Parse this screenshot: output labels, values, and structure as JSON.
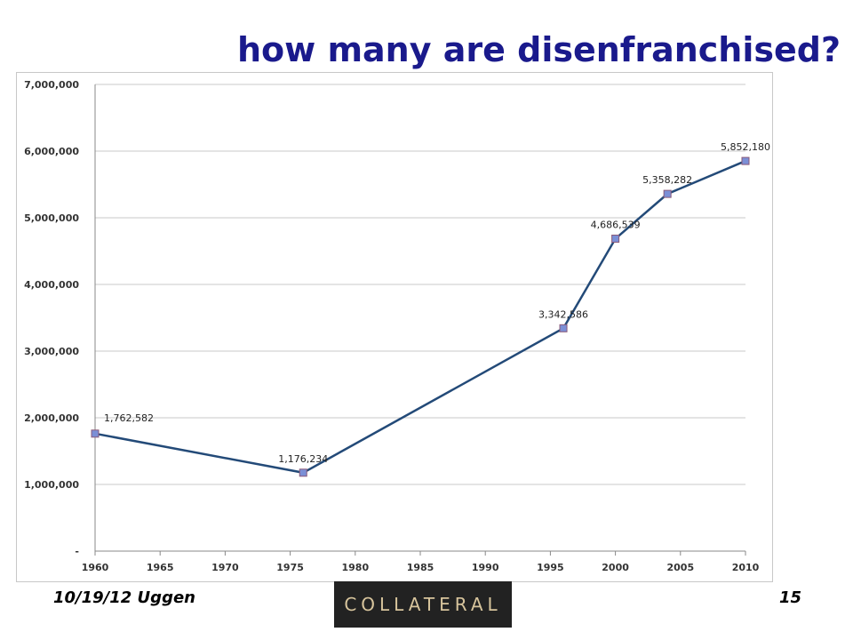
{
  "slide": {
    "title": "how many are disenfranchised?",
    "footer_left": "10/19/12 Uggen",
    "footer_right": "15",
    "logo_text": "COLLATERAL"
  },
  "chart_data": {
    "type": "line",
    "title": "",
    "xlabel": "",
    "ylabel": "",
    "xlim": [
      1960,
      2010
    ],
    "ylim": [
      0,
      7000000
    ],
    "x_ticks": [
      1960,
      1965,
      1970,
      1975,
      1980,
      1985,
      1990,
      1995,
      2000,
      2005,
      2010
    ],
    "y_ticks": [
      0,
      1000000,
      2000000,
      3000000,
      4000000,
      5000000,
      6000000,
      7000000
    ],
    "y_tick_labels": [
      "-",
      "1,000,000",
      "2,000,000",
      "3,000,000",
      "4,000,000",
      "5,000,000",
      "6,000,000",
      "7,000,000"
    ],
    "grid": "horizontal",
    "series": [
      {
        "x": [
          1960,
          1976,
          1996,
          2000,
          2004,
          2010
        ],
        "values": [
          1762582,
          1176234,
          3342586,
          4686539,
          5358282,
          5852180
        ],
        "labels": [
          "1,762,582",
          "1,176,234",
          "3,342,586",
          "4,686,539",
          "5,358,282",
          "5,852,180"
        ],
        "color": "#234a78",
        "marker_color": "#7b8fd6"
      }
    ]
  }
}
